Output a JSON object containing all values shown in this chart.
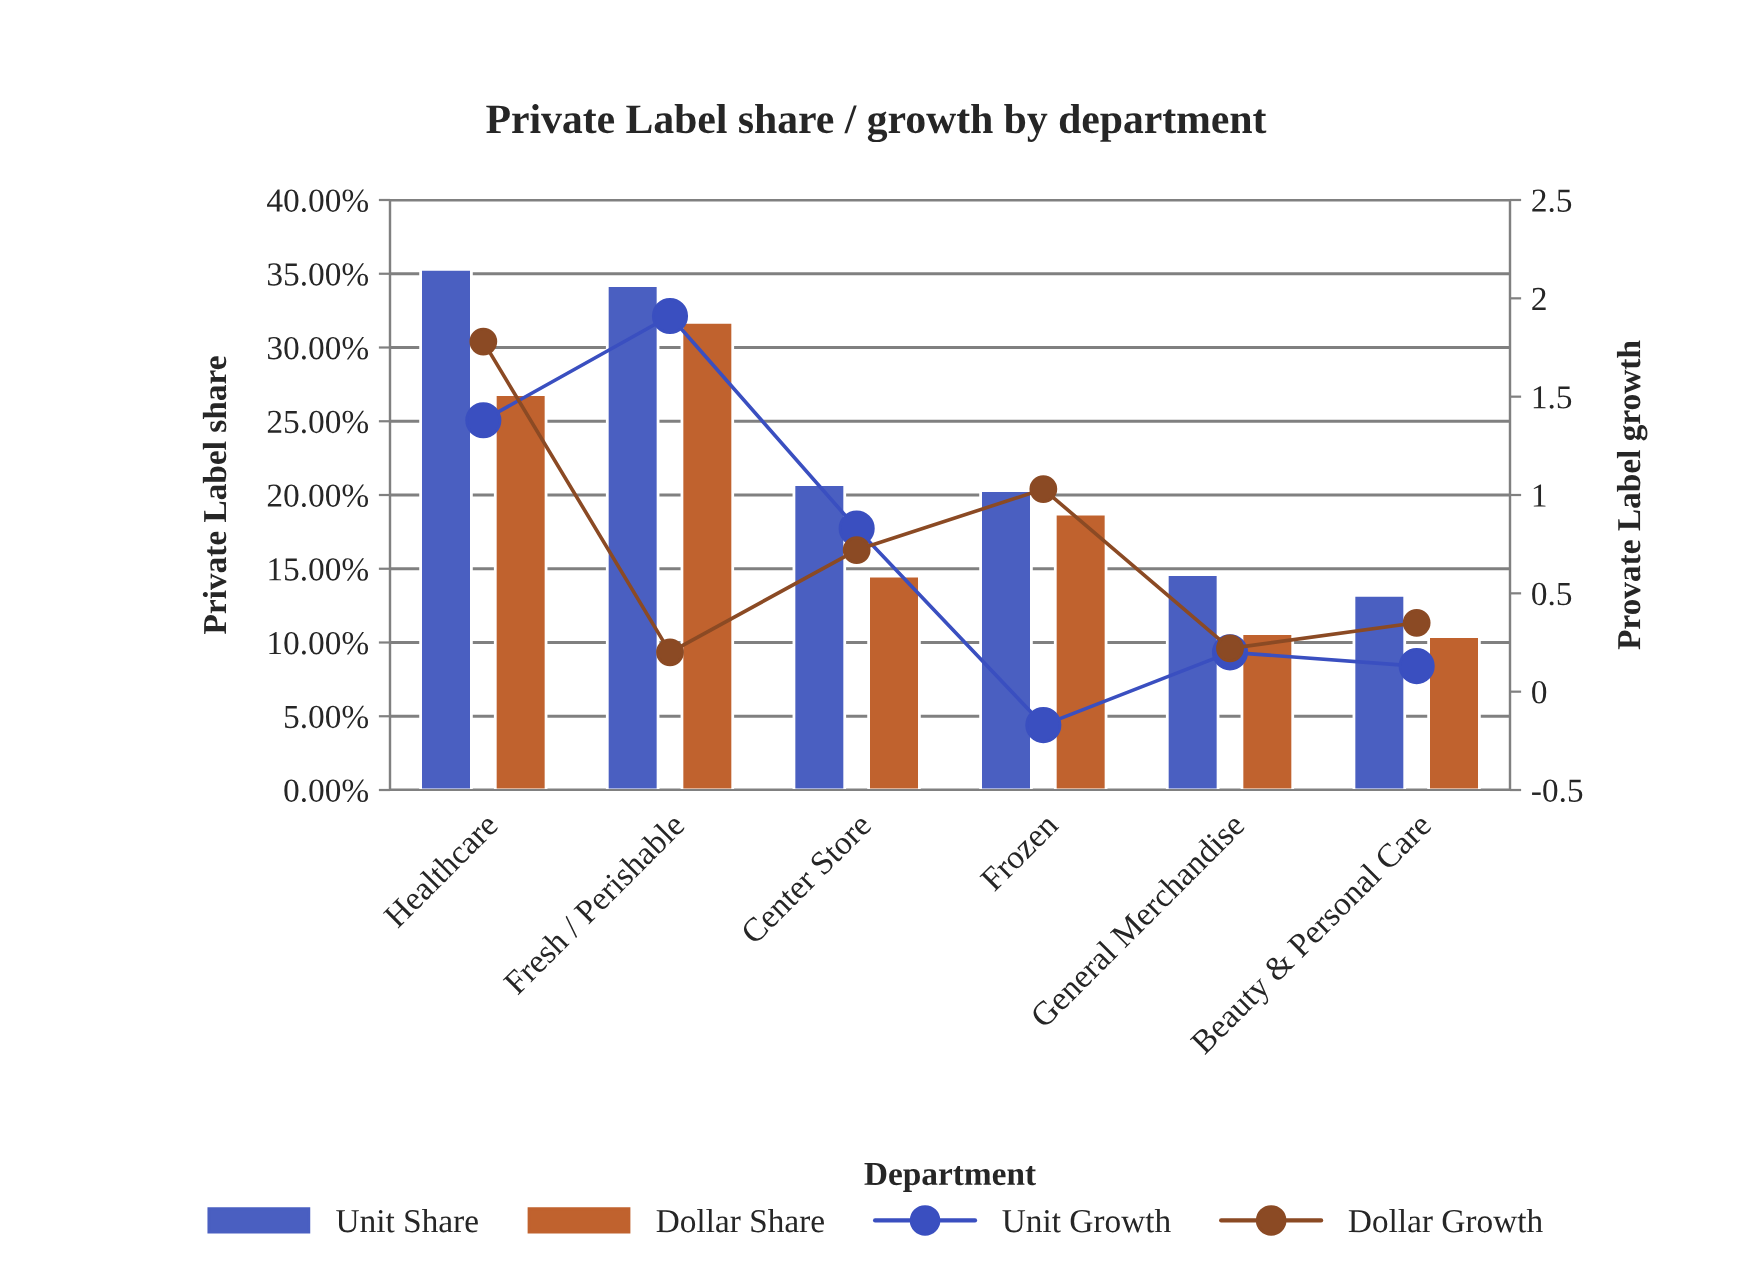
{
  "chart_data": {
    "type": "bar",
    "title": "Private Label share / growth by department",
    "xlabel": "Department",
    "ylabel": "Private Label share",
    "y2label": "Provate Label growth",
    "categories": [
      "Healthcare",
      "Fresh / Perishable",
      "Center Store",
      "Frozen",
      "General Merchandise",
      "Beauty & Personal Care"
    ],
    "series": [
      {
        "name": "Unit Share",
        "color": "#4a5fc1",
        "values": [
          0.353,
          0.342,
          0.207,
          0.203,
          0.146,
          0.132
        ]
      },
      {
        "name": "Dollar Share",
        "color": "#c0622e",
        "values": [
          0.268,
          0.317,
          0.145,
          0.187,
          0.106,
          0.104
        ]
      },
      {
        "name": "Unit Growth",
        "type": "line",
        "axis": "y2",
        "color": "#3a4fc0",
        "marker": "circle",
        "values": [
          1.38,
          1.91,
          0.83,
          -0.17,
          0.2,
          0.13
        ]
      },
      {
        "name": "Dollar Growth",
        "type": "line",
        "axis": "y2",
        "color": "#8b4a24",
        "marker": "circle",
        "values": [
          1.78,
          0.2,
          0.72,
          1.03,
          0.22,
          0.35
        ]
      }
    ],
    "ylim": [
      0,
      0.4
    ],
    "yticks": [
      {
        "value": 0,
        "label": "0.00%"
      },
      {
        "value": 0.05,
        "label": "5.00%"
      },
      {
        "value": 0.1,
        "label": "10.00%"
      },
      {
        "value": 0.15,
        "label": "15.00%"
      },
      {
        "value": 0.2,
        "label": "20.00%"
      },
      {
        "value": 0.25,
        "label": "25.00%"
      },
      {
        "value": 0.3,
        "label": "30.00%"
      },
      {
        "value": 0.35,
        "label": "35.00%"
      },
      {
        "value": 0.4,
        "label": "40.00%"
      }
    ],
    "y2lim": [
      -0.5,
      2.5
    ],
    "y2ticks": [
      {
        "value": -0.5,
        "label": "-0.5"
      },
      0,
      0.5,
      1,
      1.5,
      2,
      2.5
    ],
    "grid": "y",
    "legend": "bottom"
  }
}
